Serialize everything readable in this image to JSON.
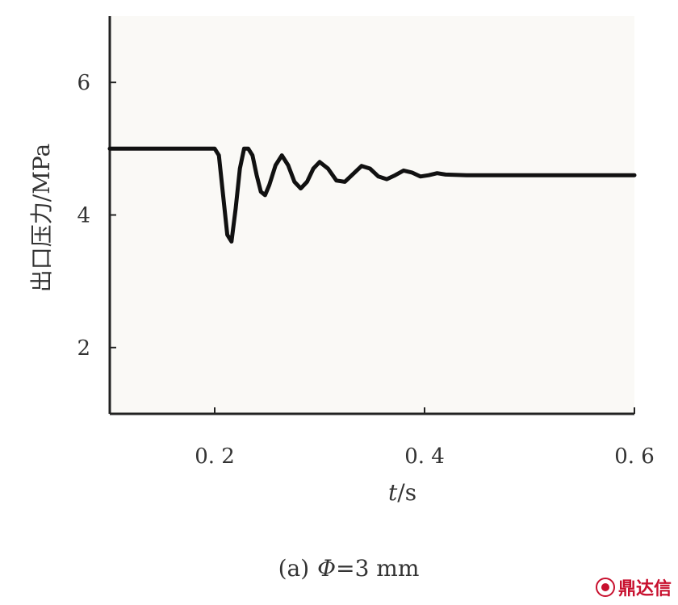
{
  "chart_data": {
    "type": "line",
    "xlabel_var": "t",
    "xlabel_unit": "/s",
    "ylabel": "出口压力/MPa",
    "caption_prefix": "(a)",
    "caption_symbol": "Φ",
    "caption_value": "=3 mm",
    "xlim": [
      0.1,
      0.6
    ],
    "ylim": [
      1,
      7
    ],
    "xticks": [
      {
        "value": 0.2,
        "label": "0. 2"
      },
      {
        "value": 0.4,
        "label": "0. 4"
      },
      {
        "value": 0.6,
        "label": "0. 6"
      }
    ],
    "yticks": [
      {
        "value": 2,
        "label": "2"
      },
      {
        "value": 4,
        "label": "4"
      },
      {
        "value": 6,
        "label": "6"
      }
    ],
    "grid": false,
    "series": [
      {
        "color": "#111111",
        "points": [
          [
            0.1,
            5.0
          ],
          [
            0.2,
            5.0
          ],
          [
            0.204,
            4.9
          ],
          [
            0.208,
            4.3
          ],
          [
            0.212,
            3.7
          ],
          [
            0.216,
            3.6
          ],
          [
            0.22,
            4.1
          ],
          [
            0.224,
            4.7
          ],
          [
            0.228,
            5.0
          ],
          [
            0.232,
            5.0
          ],
          [
            0.236,
            4.9
          ],
          [
            0.24,
            4.6
          ],
          [
            0.244,
            4.35
          ],
          [
            0.248,
            4.3
          ],
          [
            0.252,
            4.45
          ],
          [
            0.258,
            4.75
          ],
          [
            0.264,
            4.9
          ],
          [
            0.27,
            4.75
          ],
          [
            0.276,
            4.5
          ],
          [
            0.282,
            4.4
          ],
          [
            0.288,
            4.5
          ],
          [
            0.294,
            4.7
          ],
          [
            0.3,
            4.8
          ],
          [
            0.308,
            4.7
          ],
          [
            0.316,
            4.52
          ],
          [
            0.324,
            4.5
          ],
          [
            0.332,
            4.62
          ],
          [
            0.34,
            4.74
          ],
          [
            0.348,
            4.7
          ],
          [
            0.356,
            4.58
          ],
          [
            0.364,
            4.54
          ],
          [
            0.372,
            4.6
          ],
          [
            0.38,
            4.67
          ],
          [
            0.388,
            4.64
          ],
          [
            0.396,
            4.58
          ],
          [
            0.404,
            4.6
          ],
          [
            0.412,
            4.63
          ],
          [
            0.42,
            4.61
          ],
          [
            0.44,
            4.6
          ],
          [
            0.6,
            4.6
          ]
        ]
      }
    ]
  },
  "watermark": {
    "text": "鼎达信"
  }
}
